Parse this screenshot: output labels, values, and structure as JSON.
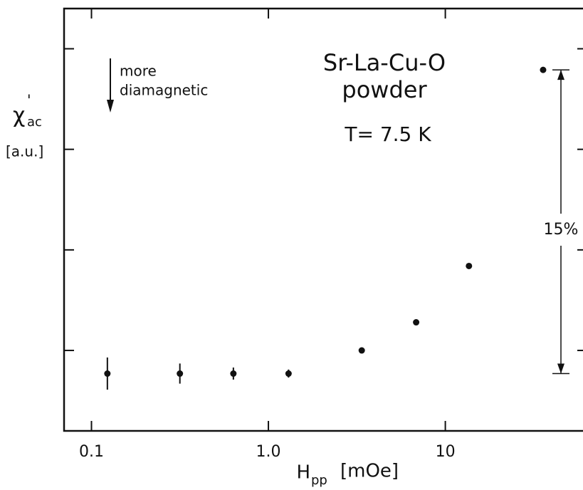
{
  "chart_data": {
    "type": "scatter",
    "annotations": {
      "arrow_text": [
        "more",
        "diamagnetic"
      ],
      "sample": [
        "Sr-La-Cu-O",
        "powder"
      ],
      "temperature": "T= 7.5 K"
    },
    "y_label": {
      "main": "χ",
      "prime": "'",
      "sub": "ac",
      "unit": "[a.u.]"
    },
    "x_label": {
      "main": "H",
      "sub": "pp",
      "unit": "[mOe]"
    },
    "x": [
      0.123,
      0.316,
      0.634,
      1.3,
      3.37,
      6.84,
      13.6,
      35.7
    ],
    "values": [
      0.77,
      0.77,
      0.77,
      0.77,
      1.0,
      1.28,
      1.84,
      3.79
    ],
    "errors": [
      0.16,
      0.1,
      0.06,
      0.04,
      null,
      null,
      null,
      null
    ],
    "color": "#111111",
    "span": {
      "label": "15%",
      "from": 0.77,
      "to": 3.79
    },
    "xlog": true,
    "xlim": [
      0.07,
      60
    ],
    "xticks": [
      0.1,
      {
        "value": 1,
        "label": "1.0"
      },
      10
    ],
    "ylim": [
      0.2,
      4.4
    ],
    "yticks": [
      1,
      2,
      3,
      4
    ]
  }
}
